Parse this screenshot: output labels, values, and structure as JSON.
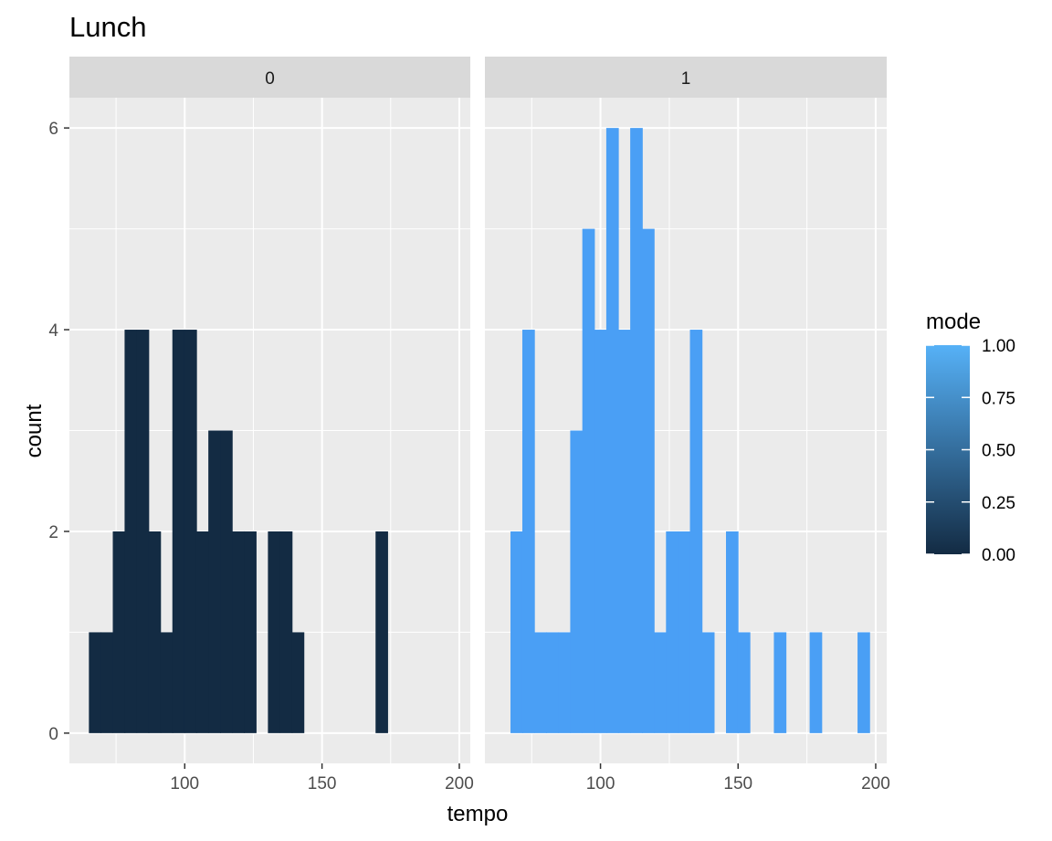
{
  "chart_data": {
    "type": "histogram",
    "title": "Lunch",
    "xlabel": "tempo",
    "ylabel": "count",
    "xlim": [
      58,
      204
    ],
    "ylim": [
      -0.3,
      6.3
    ],
    "x_ticks": [
      100,
      150,
      200
    ],
    "x_tick_labels": [
      "100",
      "150",
      "200"
    ],
    "y_ticks": [
      0,
      2,
      4,
      6
    ],
    "y_tick_labels": [
      "0",
      "2",
      "4",
      "6"
    ],
    "y_minor_ticks": [
      1,
      3,
      5
    ],
    "x_minor_ticks": [
      75,
      125,
      175
    ],
    "bin_width": 4.35,
    "grid": true,
    "legend": {
      "title": "mode",
      "placement": "right",
      "type": "colorbar",
      "labels": [
        "1.00",
        "0.75",
        "0.50",
        "0.25",
        "0.00"
      ],
      "values": [
        1.0,
        0.75,
        0.5,
        0.25,
        0.0
      ],
      "color_low": "#132B43",
      "color_high": "#56B1F7"
    },
    "facets": [
      {
        "label": "0",
        "mode": 0,
        "color": "#132B43",
        "bins": [
          {
            "x": 65.1,
            "count": 1
          },
          {
            "x": 69.4,
            "count": 1
          },
          {
            "x": 73.8,
            "count": 2
          },
          {
            "x": 78.1,
            "count": 4
          },
          {
            "x": 82.5,
            "count": 4
          },
          {
            "x": 86.8,
            "count": 2
          },
          {
            "x": 91.2,
            "count": 1
          },
          {
            "x": 95.5,
            "count": 4
          },
          {
            "x": 99.9,
            "count": 4
          },
          {
            "x": 104.2,
            "count": 2
          },
          {
            "x": 108.6,
            "count": 3
          },
          {
            "x": 112.9,
            "count": 3
          },
          {
            "x": 117.3,
            "count": 2
          },
          {
            "x": 121.6,
            "count": 2
          },
          {
            "x": 130.3,
            "count": 2
          },
          {
            "x": 134.7,
            "count": 2
          },
          {
            "x": 139.0,
            "count": 1
          },
          {
            "x": 169.5,
            "count": 2
          }
        ]
      },
      {
        "label": "1",
        "mode": 1,
        "color": "#4A9FF5",
        "bins": [
          {
            "x": 67.3,
            "count": 2
          },
          {
            "x": 71.6,
            "count": 4
          },
          {
            "x": 76.0,
            "count": 1
          },
          {
            "x": 80.3,
            "count": 1
          },
          {
            "x": 84.7,
            "count": 1
          },
          {
            "x": 89.0,
            "count": 3
          },
          {
            "x": 93.4,
            "count": 5
          },
          {
            "x": 97.7,
            "count": 4
          },
          {
            "x": 102.1,
            "count": 6
          },
          {
            "x": 106.4,
            "count": 4
          },
          {
            "x": 110.8,
            "count": 6
          },
          {
            "x": 115.1,
            "count": 5
          },
          {
            "x": 119.5,
            "count": 1
          },
          {
            "x": 123.8,
            "count": 2
          },
          {
            "x": 128.2,
            "count": 2
          },
          {
            "x": 132.5,
            "count": 4
          },
          {
            "x": 136.9,
            "count": 1
          },
          {
            "x": 145.6,
            "count": 2
          },
          {
            "x": 149.9,
            "count": 1
          },
          {
            "x": 163.0,
            "count": 1
          },
          {
            "x": 176.0,
            "count": 1
          },
          {
            "x": 193.4,
            "count": 1
          }
        ]
      }
    ]
  }
}
